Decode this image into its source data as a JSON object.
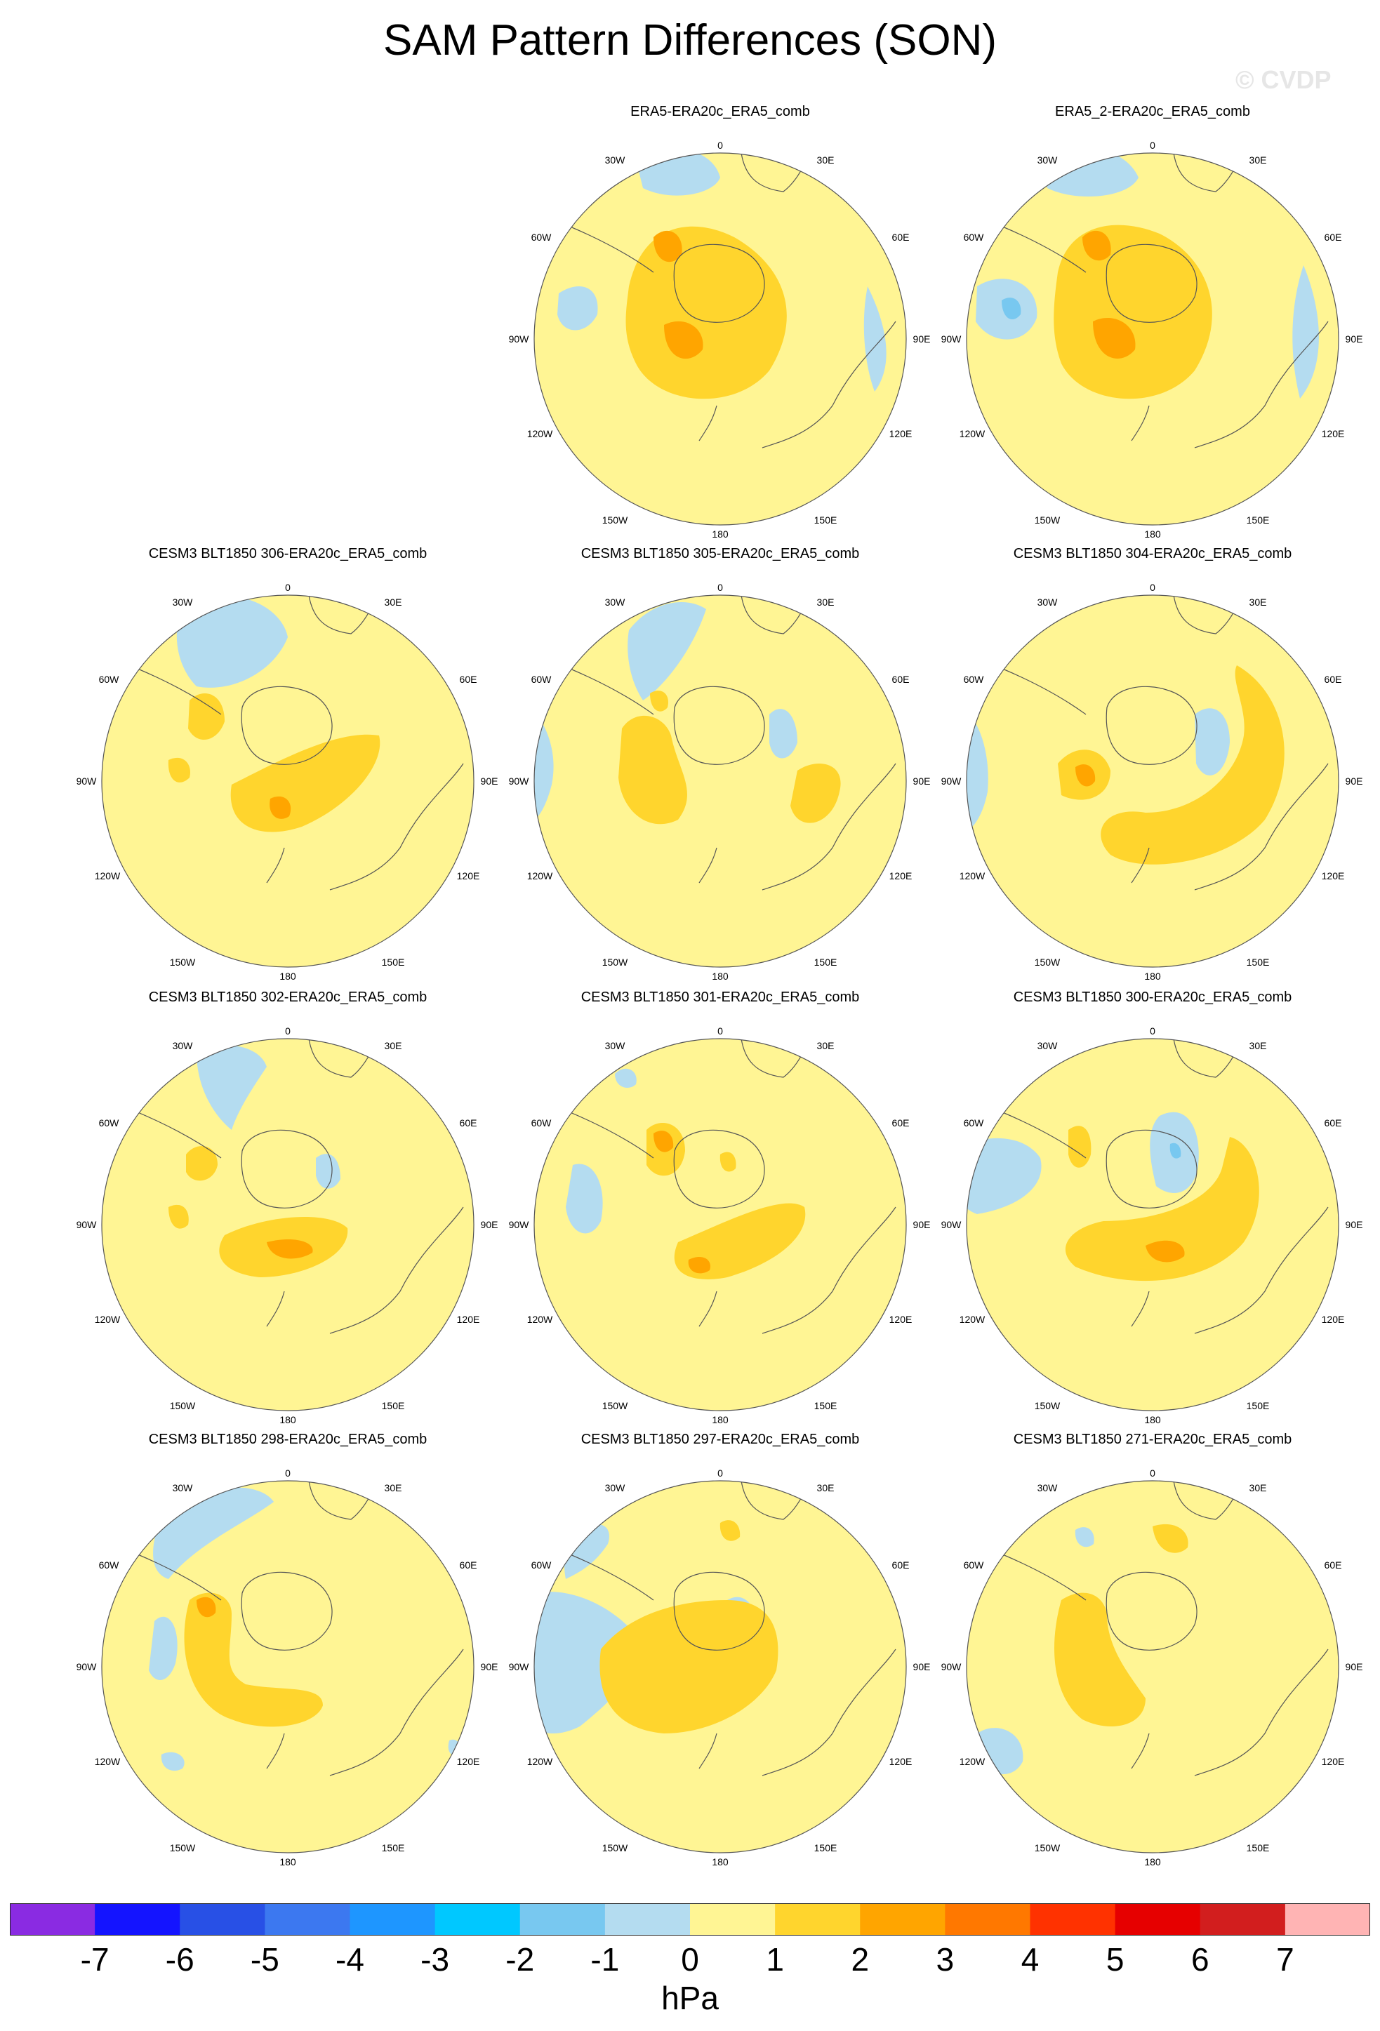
{
  "figure": {
    "title": "SAM Pattern Differences (SON)",
    "watermark": "© CVDP",
    "units": "hPa"
  },
  "colors": {
    "neg1": "#b4dcf0",
    "neg2": "#78c8f0",
    "pos1": "#fff594",
    "pos2": "#ffd52d",
    "pos3": "#ffa500",
    "coast": "#555555"
  },
  "map_labels": {
    "top": "0",
    "bottom": "180",
    "left": "90W",
    "right": "90E",
    "tl1": "30W",
    "tl2": "60W",
    "tr1": "30E",
    "tr2": "60E",
    "bl1": "120W",
    "bl2": "150W",
    "br1": "120E",
    "br2": "150E"
  },
  "panels": [
    {
      "title": "ERA5-ERA20c_ERA5_comb"
    },
    {
      "title": "ERA5_2-ERA20c_ERA5_comb"
    },
    {
      "title": "CESM3 BLT1850 306-ERA20c_ERA5_comb"
    },
    {
      "title": "CESM3 BLT1850 305-ERA20c_ERA5_comb"
    },
    {
      "title": "CESM3 BLT1850 304-ERA20c_ERA5_comb"
    },
    {
      "title": "CESM3 BLT1850 302-ERA20c_ERA5_comb"
    },
    {
      "title": "CESM3 BLT1850 301-ERA20c_ERA5_comb"
    },
    {
      "title": "CESM3 BLT1850 300-ERA20c_ERA5_comb"
    },
    {
      "title": "CESM3 BLT1850 298-ERA20c_ERA5_comb"
    },
    {
      "title": "CESM3 BLT1850 297-ERA20c_ERA5_comb"
    },
    {
      "title": "CESM3 BLT1850 271-ERA20c_ERA5_comb"
    }
  ],
  "colorbar": {
    "ticks": [
      "-7",
      "-6",
      "-5",
      "-4",
      "-3",
      "-2",
      "-1",
      "0",
      "1",
      "2",
      "3",
      "4",
      "5",
      "6",
      "7"
    ],
    "colors": [
      "#8a2be2",
      "#1414ff",
      "#2850e6",
      "#3c78f0",
      "#1e96ff",
      "#00c8ff",
      "#78c8f0",
      "#b4dcf0",
      "#fff594",
      "#ffd52d",
      "#ffa500",
      "#ff7800",
      "#ff3200",
      "#e60000",
      "#d21e1e",
      "#ffb4b4"
    ]
  }
}
